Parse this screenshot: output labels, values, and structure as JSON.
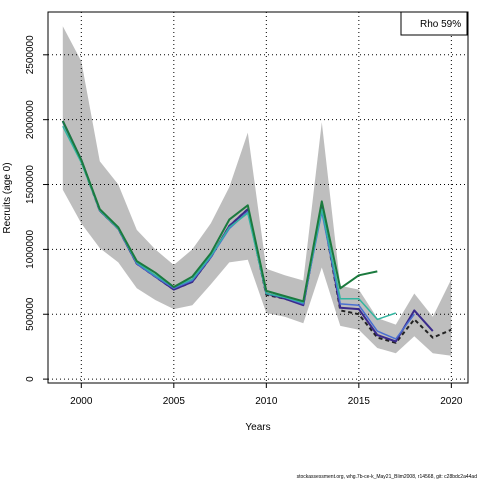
{
  "chart_data": {
    "type": "line",
    "xlabel": "Years",
    "ylabel": "Recruits (age 0)",
    "xlim": [
      1998.2,
      2020.9
    ],
    "ylim": [
      -30000,
      2830000
    ],
    "x_ticks": [
      2000,
      2005,
      2010,
      2015,
      2020
    ],
    "x_tick_labels": [
      "2000",
      "2005",
      "2010",
      "2015",
      "2020"
    ],
    "y_ticks": [
      0,
      500000,
      1000000,
      1500000,
      2000000,
      2500000
    ],
    "y_tick_labels": [
      "0",
      "500000",
      "1000000",
      "1500000",
      "2000000",
      "2500000"
    ],
    "grid": "dotted",
    "legend": {
      "text": "Rho 59%",
      "position": "top-right"
    },
    "band": {
      "x": [
        1999,
        2000,
        2001,
        2002,
        2003,
        2004,
        2005,
        2006,
        2007,
        2008,
        2009,
        2010,
        2011,
        2012,
        2013,
        2014,
        2015,
        2016,
        2017,
        2018,
        2019,
        2020
      ],
      "upper": [
        2720000,
        2450000,
        1680000,
        1500000,
        1150000,
        1000000,
        880000,
        1000000,
        1200000,
        1480000,
        1900000,
        850000,
        800000,
        760000,
        1980000,
        720000,
        690000,
        470000,
        420000,
        660000,
        480000,
        770000
      ],
      "lower": [
        1460000,
        1200000,
        1010000,
        900000,
        700000,
        610000,
        540000,
        570000,
        730000,
        900000,
        920000,
        510000,
        480000,
        430000,
        860000,
        410000,
        380000,
        240000,
        200000,
        330000,
        200000,
        180000
      ],
      "color": "#bebebe"
    },
    "series": [
      {
        "color": "#222222",
        "dash": "4,3",
        "width": 2,
        "x": [
          1999,
          2000,
          2001,
          2002,
          2003,
          2004,
          2005,
          2006,
          2007,
          2008,
          2009,
          2010,
          2011,
          2012,
          2013,
          2014,
          2015,
          2016,
          2017,
          2018,
          2019,
          2020
        ],
        "y": [
          1990000,
          1680000,
          1300000,
          1160000,
          890000,
          790000,
          690000,
          750000,
          940000,
          1180000,
          1310000,
          650000,
          620000,
          580000,
          1330000,
          530000,
          500000,
          320000,
          280000,
          460000,
          320000,
          380000
        ]
      },
      {
        "color": "#3a2a8c",
        "dash": "",
        "width": 2,
        "x": [
          1999,
          2000,
          2001,
          2002,
          2003,
          2004,
          2005,
          2006,
          2007,
          2008,
          2009,
          2010,
          2011,
          2012,
          2013,
          2014,
          2015,
          2016,
          2017,
          2018,
          2019
        ],
        "y": [
          1990000,
          1690000,
          1300000,
          1160000,
          890000,
          790000,
          690000,
          750000,
          940000,
          1180000,
          1310000,
          660000,
          620000,
          570000,
          1340000,
          550000,
          540000,
          340000,
          290000,
          530000,
          370000
        ]
      },
      {
        "color": "#4a6fd1",
        "dash": "",
        "width": 1.5,
        "x": [
          1999,
          2000,
          2001,
          2002,
          2003,
          2004,
          2005,
          2006,
          2007,
          2008,
          2009,
          2010,
          2011,
          2012,
          2013,
          2014,
          2015,
          2016,
          2017,
          2018
        ],
        "y": [
          1980000,
          1690000,
          1300000,
          1160000,
          890000,
          790000,
          700000,
          760000,
          940000,
          1160000,
          1290000,
          660000,
          630000,
          580000,
          1290000,
          580000,
          570000,
          370000,
          310000,
          500000
        ]
      },
      {
        "color": "#33b5a0",
        "dash": "",
        "width": 1.5,
        "x": [
          1999,
          2000,
          2001,
          2002,
          2003,
          2004,
          2005,
          2006,
          2007,
          2008,
          2009,
          2010,
          2011,
          2012,
          2013,
          2014,
          2015,
          2016,
          2017
        ],
        "y": [
          1950000,
          1670000,
          1300000,
          1160000,
          900000,
          800000,
          710000,
          770000,
          950000,
          1170000,
          1280000,
          660000,
          630000,
          590000,
          1310000,
          620000,
          620000,
          460000,
          510000
        ]
      },
      {
        "color": "#1b7a3e",
        "dash": "",
        "width": 2,
        "x": [
          1999,
          2000,
          2001,
          2002,
          2003,
          2004,
          2005,
          2006,
          2007,
          2008,
          2009,
          2010,
          2011,
          2012,
          2013,
          2014,
          2015,
          2016
        ],
        "y": [
          1990000,
          1690000,
          1310000,
          1170000,
          910000,
          820000,
          710000,
          790000,
          970000,
          1230000,
          1340000,
          680000,
          640000,
          600000,
          1370000,
          700000,
          800000,
          830000
        ]
      }
    ]
  },
  "footer": "stockassessment.org, whg.7b-ce-k_May21_Blim2008, r14568, git: c28bdc2a44ad"
}
